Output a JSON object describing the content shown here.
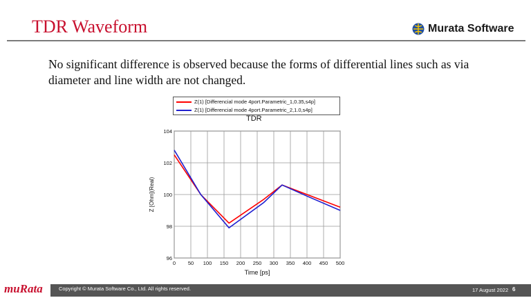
{
  "slide": {
    "title": "TDR Waveform",
    "body": "No significant difference is observed because the forms of differential lines such as via diameter and line width are not changed."
  },
  "logo": {
    "icon": "globe-logo-icon",
    "text": "Murata Software"
  },
  "footer": {
    "brand": "muRata",
    "copyright": "Copyright © Murata Software Co., Ltd. All rights reserved.",
    "date": "17 August 2022",
    "page": "6"
  },
  "colors": {
    "title": "#c8102e",
    "series1": "#ff0000",
    "series2": "#2020d0",
    "footer_bar": "#555555"
  },
  "chart_data": {
    "type": "line",
    "title": "TDR",
    "xlabel": "Time [ps]",
    "ylabel": "Z [Ohm](Real)",
    "xlim": [
      0,
      500
    ],
    "ylim": [
      96,
      104
    ],
    "xticks": [
      0,
      50,
      100,
      150,
      200,
      250,
      300,
      350,
      400,
      450,
      500
    ],
    "yticks": [
      96,
      98,
      100,
      102,
      104
    ],
    "grid": true,
    "legend_position": "top",
    "series": [
      {
        "name": "Z(1) [Differencial mode 4port.Parametric_1,0.35,s4p]",
        "color": "#ff0000",
        "x": [
          0,
          80,
          165,
          270,
          325,
          400,
          500
        ],
        "y": [
          102.5,
          100.0,
          98.2,
          99.7,
          100.6,
          100.0,
          99.2
        ]
      },
      {
        "name": "Z(1) [Differencial mode 4port.Parametric_2,1.0,s4p]",
        "color": "#2020d0",
        "x": [
          0,
          80,
          165,
          270,
          325,
          400,
          500
        ],
        "y": [
          102.8,
          100.0,
          97.9,
          99.5,
          100.6,
          99.9,
          99.0
        ]
      }
    ]
  }
}
